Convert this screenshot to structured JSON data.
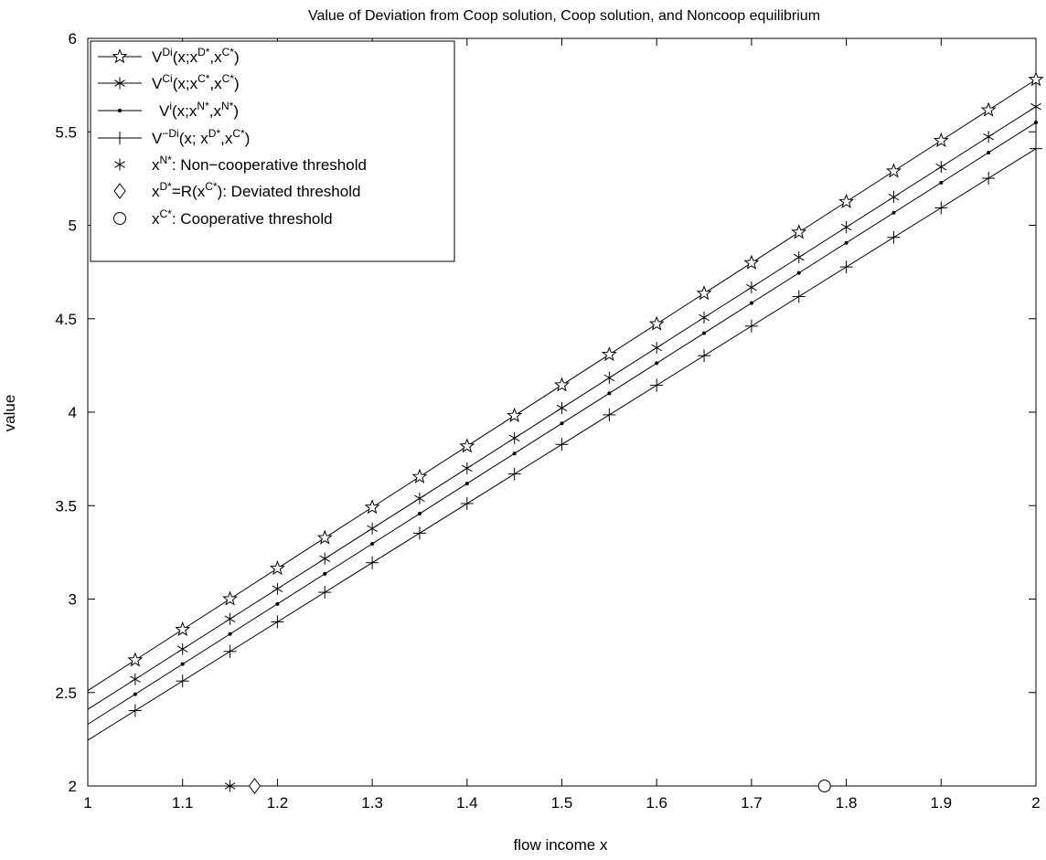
{
  "chart_data": {
    "type": "line",
    "title": "Value of Deviation from Coop solution, Coop solution, and Noncoop equilibrium",
    "xlabel": "flow income x",
    "ylabel": "value",
    "xlim": [
      1,
      2
    ],
    "ylim": [
      2,
      6
    ],
    "xticks": [
      1,
      1.1,
      1.2,
      1.3,
      1.4,
      1.5,
      1.6,
      1.7,
      1.8,
      1.9,
      2
    ],
    "xtick_labels": [
      "1",
      "1.1",
      "1.2",
      "1.3",
      "1.4",
      "1.5",
      "1.6",
      "1.7",
      "1.8",
      "1.9",
      "2"
    ],
    "yticks": [
      2,
      2.5,
      3,
      3.5,
      4,
      4.5,
      5,
      5.5,
      6
    ],
    "ytick_labels": [
      "2",
      "2.5",
      "3",
      "3.5",
      "4",
      "4.5",
      "5",
      "5.5",
      "6"
    ],
    "grid": false,
    "legend_position": "top-left",
    "marker_x": [
      1.05,
      1.1,
      1.15,
      1.2,
      1.25,
      1.3,
      1.35,
      1.4,
      1.45,
      1.5,
      1.55,
      1.6,
      1.65,
      1.7,
      1.75,
      1.8,
      1.85,
      1.9,
      1.95,
      2.0
    ],
    "series": [
      {
        "key": "VD",
        "marker": "star",
        "line_start": [
          1,
          2.51
        ],
        "line_end": [
          2,
          5.78
        ],
        "legend": {
          "base": "V",
          "sup": "Di",
          "mid": "(x;x",
          "sup2": "D*",
          "mid2": ",x",
          "sup3": "C*",
          "end": ")"
        }
      },
      {
        "key": "VC",
        "marker": "asterisk",
        "line_start": [
          1,
          2.41
        ],
        "line_end": [
          2,
          5.635
        ],
        "legend": {
          "base": "V",
          "sup": "Ci",
          "mid": "(x;x",
          "sup2": "C*",
          "mid2": ",x",
          "sup3": "C*",
          "end": ")"
        }
      },
      {
        "key": "VN",
        "marker": "dot",
        "line_start": [
          1,
          2.33
        ],
        "line_end": [
          2,
          5.55
        ],
        "legend": {
          "base": "V",
          "sup": "i",
          "mid": "(x;x",
          "sup2": "N*",
          "mid2": ",x",
          "sup3": "N*",
          "end": ")"
        }
      },
      {
        "key": "VmD",
        "marker": "plus",
        "line_start": [
          1,
          2.245
        ],
        "line_end": [
          2,
          5.41
        ],
        "legend": {
          "base": "V",
          "sup": "−Di",
          "mid": "(x; x",
          "sup2": "D*",
          "mid2": ",x",
          "sup3": "C*",
          "end": ")"
        }
      }
    ],
    "thresholds": [
      {
        "key": "xN",
        "marker": "asterisk",
        "x": 1.15,
        "y": 2,
        "legend": {
          "base": "x",
          "sup": "N*",
          "end": ": Non−cooperative threshold"
        }
      },
      {
        "key": "xD",
        "marker": "diamond",
        "x": 1.176,
        "y": 2,
        "legend": {
          "base": "x",
          "sup": "D*",
          "mid": "=R(x",
          "sup2": "C*",
          "end": "): Deviated threshold"
        }
      },
      {
        "key": "xC",
        "marker": "circle",
        "x": 1.777,
        "y": 2,
        "legend": {
          "base": "x",
          "sup": "C*",
          "end": ": Cooperative threshold"
        }
      }
    ]
  }
}
